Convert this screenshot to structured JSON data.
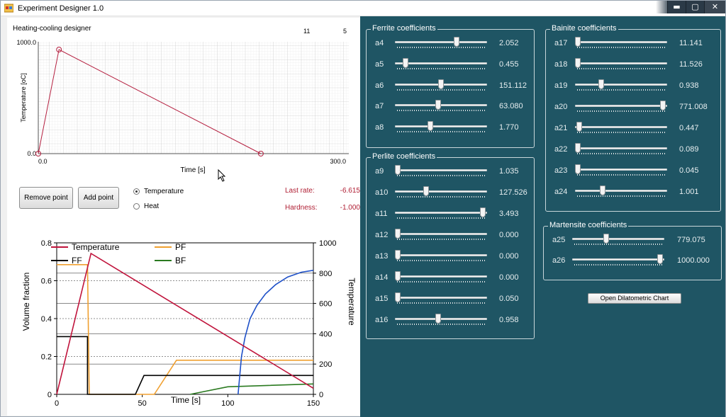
{
  "window": {
    "title": "Experiment Designer 1.0",
    "minimize_glyph": "▬",
    "maximize_glyph": "▢",
    "close_glyph": "✕"
  },
  "designer": {
    "title": "Heating-cooling designer",
    "count_a": "11",
    "count_b": "5",
    "ylabel": "Temperature [oC]",
    "xlabel": "Time [s]",
    "y_max_label": "1000.0",
    "y_min_label": "0.0",
    "x_min_label": "0.0",
    "x_max_label": "300.0",
    "points": [
      [
        0,
        0
      ],
      [
        20,
        930
      ],
      [
        215,
        0
      ]
    ],
    "x_range": [
      0,
      300
    ],
    "y_range": [
      0,
      1000
    ]
  },
  "buttons": {
    "remove_point": "Remove point",
    "add_point": "Add point",
    "open_dilatometric": "Open Dilatometric Chart"
  },
  "mode": {
    "temperature_label": "Temperature",
    "heat_label": "Heat",
    "selected": "Temperature"
  },
  "stats": {
    "last_rate_label": "Last rate:",
    "last_rate_value": "-6.615",
    "hardness_label": "Hardness:",
    "hardness_value": "-1.000"
  },
  "chart_data": {
    "type": "line",
    "xlabel": "Time [s]",
    "ylabel": "Volume fraction",
    "y2label": "Temperature",
    "xlim": [
      0,
      150
    ],
    "ylim": [
      0,
      0.8
    ],
    "y2lim": [
      0,
      1000
    ],
    "x_ticks": [
      "0",
      "50",
      "100",
      "150"
    ],
    "y_ticks": [
      "0",
      "0.2",
      "0.4",
      "0.6",
      "0.8"
    ],
    "y2_ticks": [
      "0",
      "200",
      "400",
      "600",
      "800",
      "1000"
    ],
    "grid": true,
    "legend_position": "top",
    "series": [
      {
        "name": "Temperature",
        "axis": "y2",
        "color": "#c0143c",
        "points": [
          [
            0,
            0
          ],
          [
            20,
            930
          ],
          [
            150,
            40
          ]
        ]
      },
      {
        "name": "PF",
        "axis": "y",
        "color": "#f0a030",
        "points": [
          [
            0,
            0.685
          ],
          [
            18,
            0.685
          ],
          [
            19,
            0
          ],
          [
            57,
            0
          ],
          [
            70,
            0.18
          ],
          [
            150,
            0.18
          ]
        ]
      },
      {
        "name": "FF",
        "axis": "y",
        "color": "#000000",
        "points": [
          [
            0,
            0.305
          ],
          [
            18,
            0.305
          ],
          [
            18,
            0
          ],
          [
            46,
            0
          ],
          [
            51,
            0.1
          ],
          [
            150,
            0.1
          ]
        ]
      },
      {
        "name": "BF",
        "axis": "y",
        "color": "#2a7a20",
        "points": [
          [
            78,
            0
          ],
          [
            100,
            0.04
          ],
          [
            150,
            0.055
          ]
        ]
      },
      {
        "name": "",
        "axis": "y",
        "color": "#1e50c8",
        "points": [
          [
            106,
            0
          ],
          [
            108,
            0.2
          ],
          [
            110,
            0.3
          ],
          [
            113,
            0.4
          ],
          [
            117,
            0.47
          ],
          [
            122,
            0.53
          ],
          [
            128,
            0.58
          ],
          [
            135,
            0.62
          ],
          [
            143,
            0.645
          ],
          [
            150,
            0.655
          ]
        ]
      }
    ]
  },
  "groups": {
    "ferrite": {
      "title": "Ferrite coefficients",
      "items": [
        {
          "label": "a4",
          "value": "2.052",
          "pos": 0.68
        },
        {
          "label": "a5",
          "value": "0.455",
          "pos": 0.09
        },
        {
          "label": "a6",
          "value": "151.112",
          "pos": 0.5
        },
        {
          "label": "a7",
          "value": "63.080",
          "pos": 0.47
        },
        {
          "label": "a8",
          "value": "1.770",
          "pos": 0.38
        }
      ]
    },
    "perlite": {
      "title": "Perlite coefficients",
      "items": [
        {
          "label": "a9",
          "value": "1.035",
          "pos": 0.0
        },
        {
          "label": "a10",
          "value": "127.526",
          "pos": 0.33
        },
        {
          "label": "a11",
          "value": "3.493",
          "pos": 0.98
        },
        {
          "label": "a12",
          "value": "0.000",
          "pos": 0.0
        },
        {
          "label": "a13",
          "value": "0.000",
          "pos": 0.0
        },
        {
          "label": "a14",
          "value": "0.000",
          "pos": 0.0
        },
        {
          "label": "a15",
          "value": "0.050",
          "pos": 0.0
        },
        {
          "label": "a16",
          "value": "0.958",
          "pos": 0.47
        }
      ]
    },
    "bainite": {
      "title": "Bainite coefficients",
      "items": [
        {
          "label": "a17",
          "value": "11.141",
          "pos": 0.0
        },
        {
          "label": "a18",
          "value": "11.526",
          "pos": 0.0
        },
        {
          "label": "a19",
          "value": "0.938",
          "pos": 0.27
        },
        {
          "label": "a20",
          "value": "771.008",
          "pos": 0.98
        },
        {
          "label": "a21",
          "value": "0.447",
          "pos": 0.02
        },
        {
          "label": "a22",
          "value": "0.089",
          "pos": 0.0
        },
        {
          "label": "a23",
          "value": "0.045",
          "pos": 0.0
        },
        {
          "label": "a24",
          "value": "1.001",
          "pos": 0.29
        }
      ]
    },
    "martensite": {
      "title": "Martensite coefficients",
      "items": [
        {
          "label": "a25",
          "value": "779.075",
          "pos": 0.36
        },
        {
          "label": "a26",
          "value": "1000.000",
          "pos": 0.98
        }
      ]
    }
  }
}
